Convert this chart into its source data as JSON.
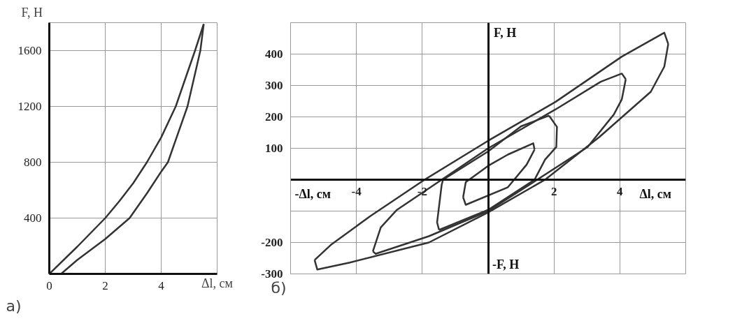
{
  "chart_data": [
    {
      "type": "line",
      "xlabel": "Δl, см",
      "ylabel": "F, Н",
      "annotations": [
        "а)"
      ],
      "xlim": [
        0,
        6
      ],
      "ylim": [
        0,
        1800
      ],
      "xticks": [
        0,
        2,
        4,
        {
          "value": 6,
          "label": null
        }
      ],
      "yticks": [
        {
          "value": 0,
          "label": null
        },
        400,
        800,
        1200,
        1600,
        {
          "value": 1800,
          "label": null
        }
      ],
      "grid": true,
      "line_style": "solid",
      "marker": "none",
      "series": [
        {
          "color": "#333333",
          "x": [
            0,
            1,
            2,
            2.5,
            3,
            3.49,
            4,
            4.52,
            5.21,
            5.52
          ],
          "values": [
            0,
            195,
            400,
            520,
            650,
            800,
            978,
            1200,
            1600,
            1790
          ]
        },
        {
          "color": "#333333",
          "x": [
            5.52,
            5.4,
            4.94,
            4.24,
            4,
            3.5,
            2.87,
            2,
            1,
            0.42
          ],
          "values": [
            1790,
            1600,
            1200,
            800,
            733,
            580,
            400,
            250,
            100,
            0
          ]
        }
      ]
    },
    {
      "type": "line",
      "xlabel": "Δl, см",
      "ylabel": "F, Н",
      "annotations": [
        "б)",
        "-Δl, см",
        "-F, Н"
      ],
      "xlim": [
        -6,
        6
      ],
      "ylim": [
        -300,
        500
      ],
      "xticks": [
        {
          "value": -6,
          "label": null
        },
        -4,
        -2,
        {
          "value": 0,
          "label": null
        },
        2,
        4,
        {
          "value": 6,
          "label": null
        }
      ],
      "yticks": [
        -300,
        -200,
        {
          "value": -100,
          "label": null
        },
        {
          "value": 0,
          "label": null
        },
        100,
        200,
        300,
        400,
        {
          "value": 500,
          "label": null
        }
      ],
      "grid": true,
      "line_style": "solid",
      "marker": "none",
      "series": [
        {
          "color": "#333333",
          "x": [
            -5.27,
            -4.78,
            -3.58,
            -1.93,
            0,
            2.05,
            4.06,
            5.35,
            5.47
          ],
          "values": [
            -256,
            -208,
            -116,
            0,
            124,
            248,
            392,
            468,
            432
          ]
        },
        {
          "color": "#333333",
          "x": [
            5.47,
            5.35,
            4.94,
            3.38,
            1.73,
            0,
            -1.8,
            -4.2,
            -5.19,
            -5.27
          ],
          "values": [
            432,
            360,
            280,
            136,
            0,
            -104,
            -200,
            -264,
            -286,
            -256
          ]
        },
        {
          "color": "#333333",
          "x": [
            -3.5,
            -3.26,
            -2.77,
            -1.41,
            0,
            2.05,
            3.42,
            4.06,
            4.18
          ],
          "values": [
            -228,
            -152,
            -96,
            0,
            100,
            224,
            312,
            338,
            320
          ]
        },
        {
          "color": "#333333",
          "x": [
            4.18,
            4.06,
            3.82,
            3.02,
            1.49,
            0,
            -1.8,
            -3.42,
            -3.5
          ],
          "values": [
            320,
            256,
            208,
            104,
            0,
            -100,
            -180,
            -236,
            -228
          ]
        },
        {
          "color": "#333333",
          "x": [
            -1.49,
            -1.55,
            -1.41,
            -1.37,
            0,
            1.0,
            1.85
          ],
          "values": [
            -160,
            -136,
            -16,
            0,
            90,
            170,
            204
          ]
        },
        {
          "color": "#333333",
          "x": [
            1.85,
            2.09,
            2.07,
            1.73,
            1.41,
            0,
            -1.49
          ],
          "values": [
            204,
            168,
            104,
            64,
            0,
            -96,
            -160
          ]
        },
        {
          "color": "#333333",
          "x": [
            -0.76,
            -0.68,
            0,
            0.6,
            1.37,
            1.41
          ],
          "values": [
            -56,
            -8,
            44,
            80,
            116,
            96
          ]
        },
        {
          "color": "#333333",
          "x": [
            1.41,
            1.17,
            0.6,
            -0.68,
            -0.76
          ],
          "values": [
            96,
            48,
            -24,
            -80,
            -56
          ]
        }
      ]
    }
  ]
}
